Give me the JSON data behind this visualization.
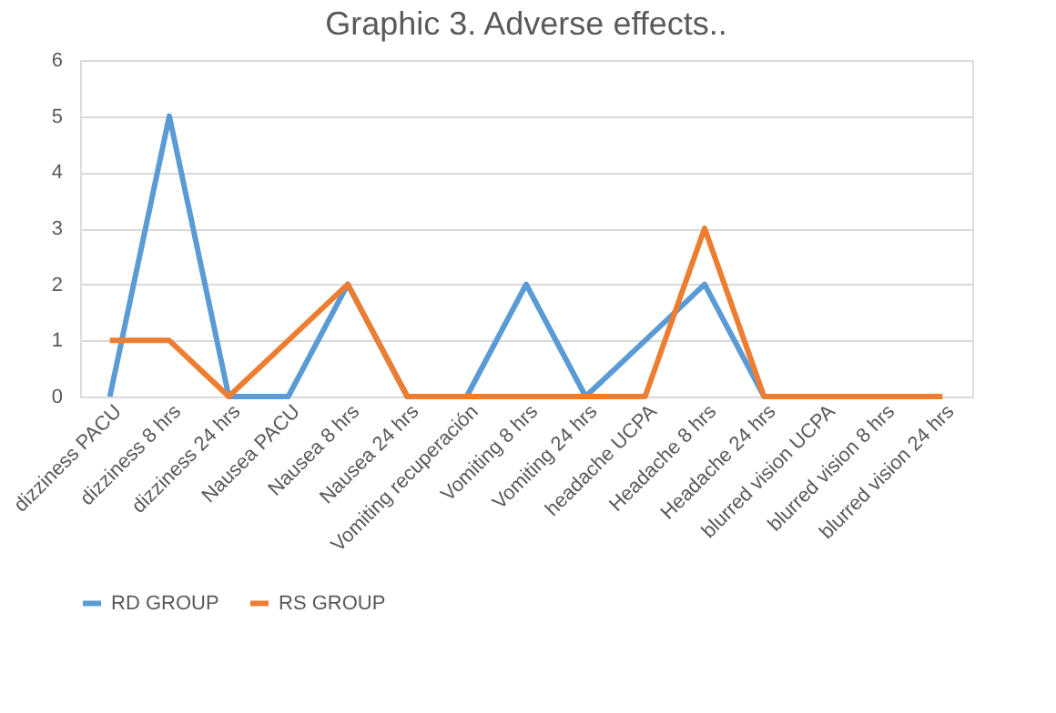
{
  "chart_data": {
    "type": "line",
    "title": "Graphic 3. Adverse effects..",
    "categories": [
      "dizziness PACU",
      "dizziness 8 hrs",
      "dizziness 24 hrs",
      "Nausea  PACU",
      "Nausea 8 hrs",
      "Nausea 24 hrs",
      "Vomiting  recuperación",
      "Vomiting 8 hrs",
      "Vomiting 24 hrs",
      "headache UCPA",
      "Headache 8 hrs",
      "Headache 24 hrs",
      "blurred vision UCPA",
      "blurred vision 8 hrs",
      "blurred vision 24 hrs"
    ],
    "series": [
      {
        "name": "RD GROUP",
        "color": "#5b9bd5",
        "values": [
          0,
          5,
          0,
          0,
          2,
          0,
          0,
          2,
          0,
          1,
          2,
          0,
          0,
          null,
          null
        ]
      },
      {
        "name": "RS GROUP",
        "color": "#ed7d31",
        "values": [
          1,
          1,
          0,
          1,
          2,
          0,
          0,
          0,
          0,
          0,
          3,
          0,
          0,
          0,
          0
        ]
      }
    ],
    "ylim": [
      0,
      6
    ],
    "yticks": [
      0,
      1,
      2,
      3,
      4,
      5,
      6
    ],
    "grid": "y",
    "legend": "bottom",
    "marker": "none",
    "line_style": "solid"
  }
}
